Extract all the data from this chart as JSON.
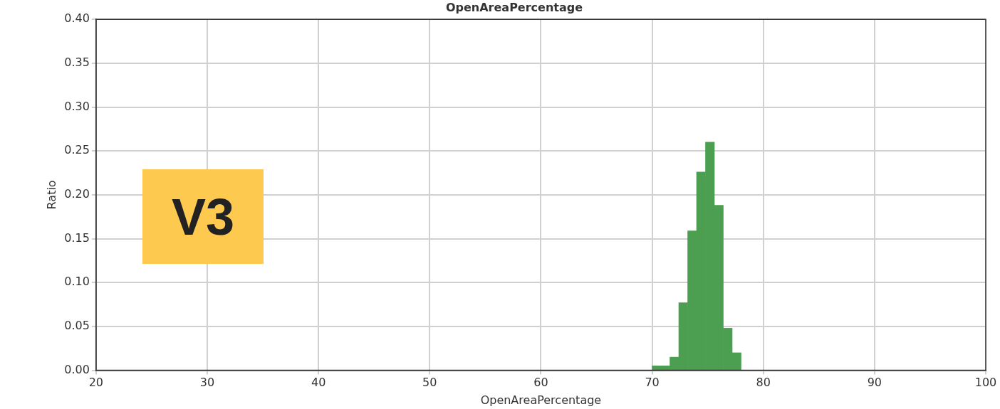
{
  "chart_data": {
    "type": "histogram",
    "title": "OpenAreaPercentage",
    "xlabel": "OpenAreaPercentage",
    "ylabel": "Ratio",
    "bins": [
      70,
      70.8,
      71.6,
      72.4,
      73.2,
      74,
      74.8,
      75.6,
      76.4,
      77.2,
      78
    ],
    "values": [
      0.005,
      0.005,
      0.015,
      0.077,
      0.159,
      0.226,
      0.26,
      0.188,
      0.048,
      0.02
    ],
    "color": "#4c9f50",
    "xlim": [
      20,
      100
    ],
    "xticks": [
      20,
      30,
      40,
      50,
      60,
      70,
      80,
      90,
      100
    ],
    "ylim": [
      0,
      0.4
    ],
    "yticks": [
      {
        "value": 0,
        "label": "0.00"
      },
      {
        "value": 0.05,
        "label": "0.05"
      },
      {
        "value": 0.1,
        "label": "0.10"
      },
      {
        "value": 0.15,
        "label": "0.15"
      },
      {
        "value": 0.2,
        "label": "0.20"
      },
      {
        "value": 0.25,
        "label": "0.25"
      },
      {
        "value": 0.3,
        "label": "0.30"
      },
      {
        "value": 0.35,
        "label": "0.35"
      },
      {
        "value": 0.4,
        "label": "0.40"
      }
    ],
    "grid": true,
    "annotations": [
      "V3"
    ]
  }
}
